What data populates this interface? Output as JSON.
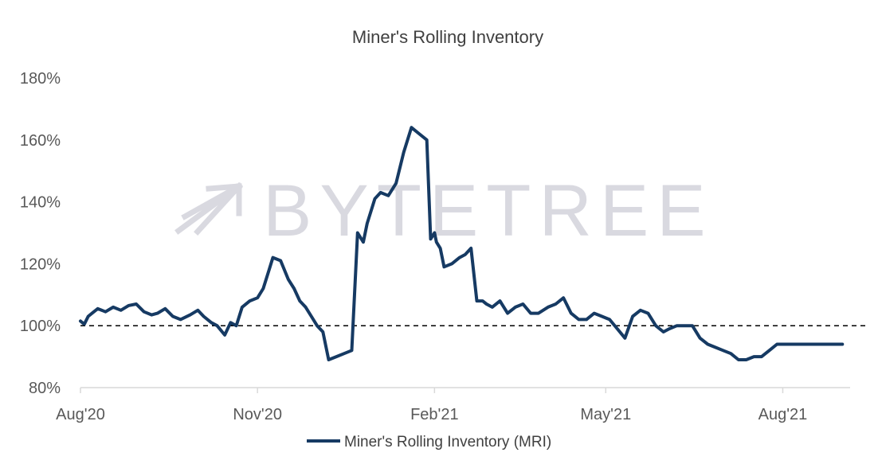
{
  "chart_data": {
    "type": "line",
    "title": "Miner's Rolling Inventory",
    "xlabel": "",
    "ylabel": "",
    "xlim": [
      "2020-08-01",
      "2021-09-05"
    ],
    "ylim": [
      80,
      180
    ],
    "y_ticks": [
      80,
      100,
      120,
      140,
      160,
      180
    ],
    "y_tick_labels": [
      "80%",
      "100%",
      "120%",
      "140%",
      "160%",
      "180%"
    ],
    "x_ticks": [
      "2020-08-01",
      "2020-11-01",
      "2021-02-01",
      "2021-05-01",
      "2021-08-01"
    ],
    "x_tick_labels": [
      "Aug'20",
      "Nov'20",
      "Feb'21",
      "May'21",
      "Aug'21"
    ],
    "reference_line": {
      "y": 100,
      "style": "dashed",
      "color": "#000000"
    },
    "legend": {
      "position": "bottom",
      "entries": [
        "Miner's Rolling Inventory (MRI)"
      ]
    },
    "watermark": "BYTETREE",
    "grid": false,
    "series": [
      {
        "name": "Miner's Rolling Inventory (MRI)",
        "color": "#163a63",
        "x": [
          "2020-08-01",
          "2020-08-03",
          "2020-08-05",
          "2020-08-07",
          "2020-08-10",
          "2020-08-14",
          "2020-08-18",
          "2020-08-22",
          "2020-08-26",
          "2020-08-30",
          "2020-09-03",
          "2020-09-07",
          "2020-09-10",
          "2020-09-14",
          "2020-09-18",
          "2020-09-22",
          "2020-09-27",
          "2020-10-01",
          "2020-10-04",
          "2020-10-08",
          "2020-10-11",
          "2020-10-15",
          "2020-10-18",
          "2020-10-21",
          "2020-10-24",
          "2020-10-28",
          "2020-11-01",
          "2020-11-04",
          "2020-11-07",
          "2020-11-09",
          "2020-11-13",
          "2020-11-17",
          "2020-11-20",
          "2020-11-23",
          "2020-11-26",
          "2020-11-29",
          "2020-12-02",
          "2020-12-05",
          "2020-12-08",
          "2020-12-12",
          "2020-12-16",
          "2020-12-20",
          "2020-12-23",
          "2020-12-25",
          "2020-12-26",
          "2020-12-28",
          "2021-01-01",
          "2021-01-04",
          "2021-01-08",
          "2021-01-12",
          "2021-01-16",
          "2021-01-20",
          "2021-01-24",
          "2021-01-28",
          "2021-01-30",
          "2021-02-01",
          "2021-02-02",
          "2021-02-04",
          "2021-02-06",
          "2021-02-10",
          "2021-02-14",
          "2021-02-17",
          "2021-02-20",
          "2021-02-23",
          "2021-02-26",
          "2021-02-28",
          "2021-03-03",
          "2021-03-07",
          "2021-03-11",
          "2021-03-15",
          "2021-03-19",
          "2021-03-23",
          "2021-03-27",
          "2021-04-01",
          "2021-04-05",
          "2021-04-09",
          "2021-04-13",
          "2021-04-17",
          "2021-04-21",
          "2021-04-25",
          "2021-04-29",
          "2021-05-03",
          "2021-05-07",
          "2021-05-11",
          "2021-05-15",
          "2021-05-19",
          "2021-05-23",
          "2021-05-27",
          "2021-05-31",
          "2021-06-03",
          "2021-06-07",
          "2021-06-11",
          "2021-06-15",
          "2021-06-19",
          "2021-06-23",
          "2021-06-27",
          "2021-07-01",
          "2021-07-05",
          "2021-07-09",
          "2021-07-13",
          "2021-07-17",
          "2021-07-21",
          "2021-07-25",
          "2021-07-29",
          "2021-08-02",
          "2021-08-06",
          "2021-08-10",
          "2021-08-14",
          "2021-08-18",
          "2021-08-22",
          "2021-08-26",
          "2021-08-30",
          "2021-09-01"
        ],
        "values": [
          101.5,
          100.5,
          103,
          104,
          105.5,
          104.5,
          106,
          105,
          106.5,
          107,
          104.5,
          103.5,
          104,
          105.5,
          103,
          102,
          103.5,
          105,
          103,
          101,
          100,
          97,
          101,
          100,
          106,
          108,
          109,
          112,
          118,
          122,
          121,
          115,
          112,
          108,
          106,
          103,
          100,
          98,
          89,
          90,
          91,
          92,
          130,
          128,
          127,
          133,
          141,
          143,
          142,
          146,
          156,
          164,
          162,
          160,
          128,
          130,
          127,
          125,
          119,
          120,
          122,
          123,
          125,
          108,
          108,
          107,
          106,
          108,
          104,
          106,
          107,
          104,
          104,
          106,
          107,
          109,
          104,
          102,
          102,
          104,
          103,
          102,
          99,
          96,
          103,
          105,
          104,
          100,
          98,
          99,
          100,
          100,
          100,
          96,
          94,
          93,
          92,
          91,
          89,
          89,
          90,
          90,
          92,
          94,
          94,
          94,
          94,
          94,
          94,
          94,
          94,
          94,
          94
        ]
      }
    ]
  }
}
